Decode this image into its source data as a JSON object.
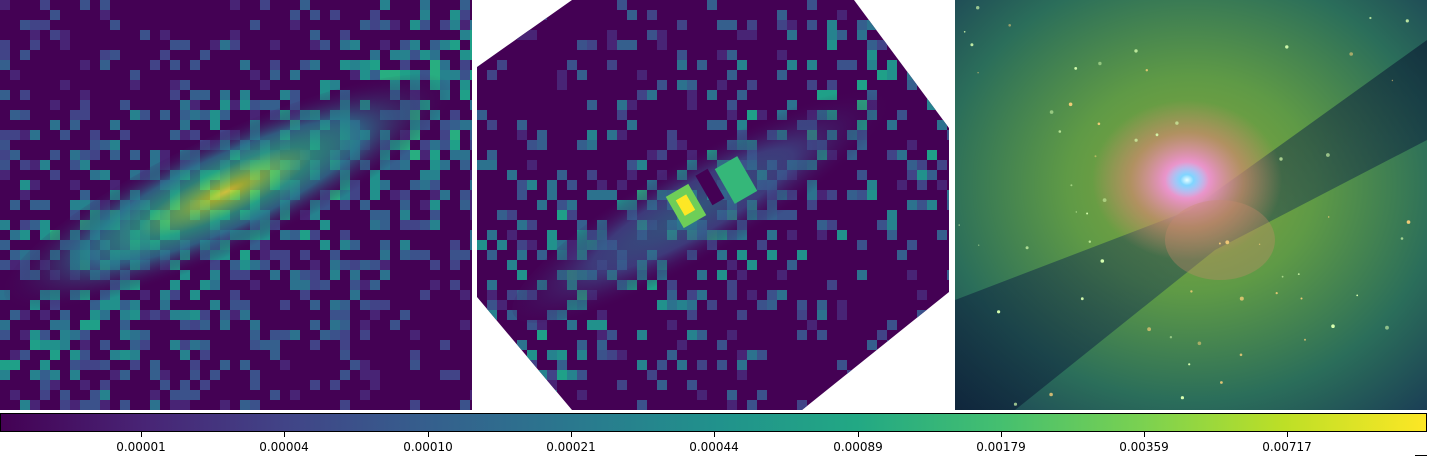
{
  "panels": [
    {
      "label": "",
      "description_name": "intensity-map-left"
    },
    {
      "label": "",
      "description_name": "intensity-map-middle-octagon"
    },
    {
      "label": "",
      "description_name": "galaxy-composite-image"
    }
  ],
  "colorbar": {
    "colormap": "viridis",
    "tick_labels": [
      "0.00001",
      "0.00004",
      "0.00010",
      "0.00021",
      "0.00044",
      "0.00089",
      "0.00179",
      "0.00359",
      "0.00717"
    ]
  },
  "colors": {
    "viridis_low": "#440154",
    "viridis_mid": "#21918c",
    "viridis_high": "#fde725"
  }
}
